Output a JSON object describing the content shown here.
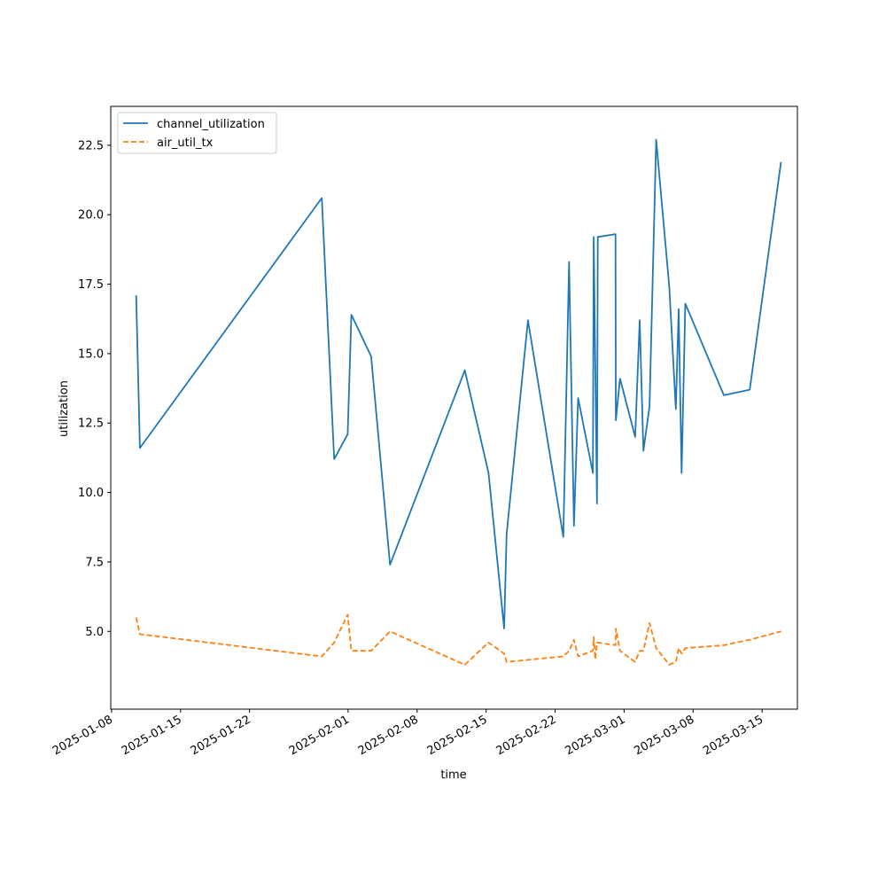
{
  "chart_data": {
    "type": "line",
    "title": "",
    "xlabel": "time",
    "ylabel": "utilization",
    "xlim": [
      "2025-01-07T22:00",
      "2025-03-18T14:00"
    ],
    "ylim": [
      2.2,
      23.9
    ],
    "grid": false,
    "legend_position": "top-left",
    "x_tick_labels": [
      "2025-01-08",
      "2025-01-15",
      "2025-01-22",
      "2025-02-01",
      "2025-02-08",
      "2025-02-15",
      "2025-02-22",
      "2025-03-01",
      "2025-03-08",
      "2025-03-15"
    ],
    "y_tick_labels": [
      "5.0",
      "7.5",
      "10.0",
      "12.5",
      "15.0",
      "17.5",
      "20.0",
      "22.5"
    ],
    "series": [
      {
        "name": "channel_utilization",
        "color": "#1f77b4",
        "style": "solid",
        "points": [
          [
            "2025-01-10T12:00",
            17.1
          ],
          [
            "2025-01-10T21:00",
            11.6
          ],
          [
            "2025-01-29T08:00",
            20.6
          ],
          [
            "2025-01-30T14:00",
            11.2
          ],
          [
            "2025-01-31T23:00",
            12.1
          ],
          [
            "2025-02-01T08:00",
            16.4
          ],
          [
            "2025-02-03T08:00",
            14.9
          ],
          [
            "2025-02-05T06:00",
            7.4
          ],
          [
            "2025-02-12T20:00",
            14.4
          ],
          [
            "2025-02-15T06:00",
            10.7
          ],
          [
            "2025-02-16T20:00",
            5.1
          ],
          [
            "2025-02-17T02:00",
            8.5
          ],
          [
            "2025-02-19T06:00",
            16.2
          ],
          [
            "2025-02-22T20:00",
            8.4
          ],
          [
            "2025-02-23T10:00",
            18.3
          ],
          [
            "2025-02-23T22:00",
            8.8
          ],
          [
            "2025-02-24T08:00",
            13.4
          ],
          [
            "2025-02-25T20:00",
            10.7
          ],
          [
            "2025-02-25T22:00",
            19.2
          ],
          [
            "2025-02-26T06:00",
            9.6
          ],
          [
            "2025-02-26T08:00",
            19.2
          ],
          [
            "2025-02-28T03:00",
            19.3
          ],
          [
            "2025-02-28T04:00",
            12.6
          ],
          [
            "2025-02-28T14:00",
            14.1
          ],
          [
            "2025-03-02T03:00",
            12.0
          ],
          [
            "2025-03-02T14:00",
            16.2
          ],
          [
            "2025-03-02T23:00",
            11.5
          ],
          [
            "2025-03-03T14:00",
            13.1
          ],
          [
            "2025-03-04T06:00",
            22.7
          ],
          [
            "2025-03-05T14:00",
            17.4
          ],
          [
            "2025-03-06T06:00",
            13.0
          ],
          [
            "2025-03-06T13:00",
            16.6
          ],
          [
            "2025-03-06T20:00",
            10.7
          ],
          [
            "2025-03-07T05:00",
            16.8
          ],
          [
            "2025-03-11T03:00",
            13.5
          ],
          [
            "2025-03-13T18:00",
            13.7
          ],
          [
            "2025-03-16T22:00",
            21.9
          ]
        ]
      },
      {
        "name": "air_util_tx",
        "color": "#ff7f0e",
        "style": "dashed",
        "points": [
          [
            "2025-01-10T12:00",
            5.5
          ],
          [
            "2025-01-10T21:00",
            4.9
          ],
          [
            "2025-01-29T08:00",
            4.1
          ],
          [
            "2025-01-30T14:00",
            4.6
          ],
          [
            "2025-01-31T23:00",
            5.6
          ],
          [
            "2025-02-01T08:00",
            4.3
          ],
          [
            "2025-02-03T08:00",
            4.3
          ],
          [
            "2025-02-05T06:00",
            5.0
          ],
          [
            "2025-02-12T20:00",
            3.8
          ],
          [
            "2025-02-15T06:00",
            4.6
          ],
          [
            "2025-02-16T20:00",
            4.2
          ],
          [
            "2025-02-17T02:00",
            3.9
          ],
          [
            "2025-02-22T20:00",
            4.1
          ],
          [
            "2025-02-23T10:00",
            4.3
          ],
          [
            "2025-02-23T22:00",
            4.7
          ],
          [
            "2025-02-24T08:00",
            4.1
          ],
          [
            "2025-02-25T20:00",
            4.3
          ],
          [
            "2025-02-25T22:00",
            4.8
          ],
          [
            "2025-02-26T02:00",
            4.0
          ],
          [
            "2025-02-26T06:00",
            4.6
          ],
          [
            "2025-02-28T03:00",
            4.5
          ],
          [
            "2025-02-28T04:00",
            5.1
          ],
          [
            "2025-02-28T14:00",
            4.3
          ],
          [
            "2025-03-02T03:00",
            3.9
          ],
          [
            "2025-03-02T14:00",
            4.3
          ],
          [
            "2025-03-02T23:00",
            4.3
          ],
          [
            "2025-03-03T14:00",
            5.3
          ],
          [
            "2025-03-04T06:00",
            4.4
          ],
          [
            "2025-03-05T14:00",
            3.8
          ],
          [
            "2025-03-06T06:00",
            3.9
          ],
          [
            "2025-03-06T13:00",
            4.4
          ],
          [
            "2025-03-06T20:00",
            4.2
          ],
          [
            "2025-03-07T05:00",
            4.4
          ],
          [
            "2025-03-11T03:00",
            4.5
          ],
          [
            "2025-03-13T18:00",
            4.7
          ],
          [
            "2025-03-16T22:00",
            5.0
          ]
        ]
      }
    ]
  }
}
